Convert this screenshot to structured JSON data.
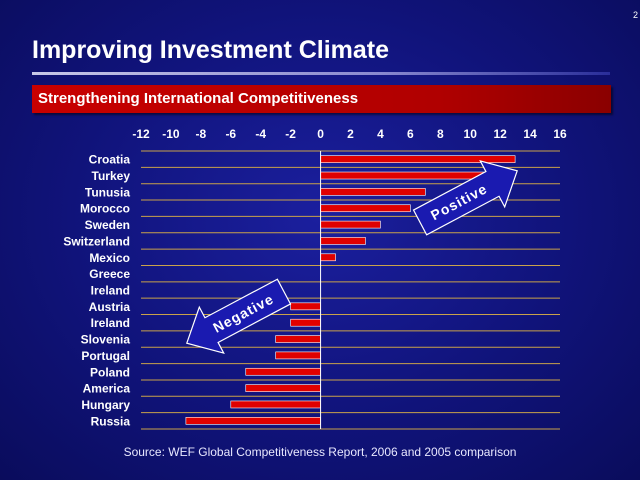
{
  "page": {
    "number": "2"
  },
  "header": {
    "title": "Improving Investment Climate",
    "banner": "Strengthening International Competitiveness"
  },
  "footer": {
    "source": "Source: WEF Global Competitiveness Report, 2006 and 2005 comparison"
  },
  "colors": {
    "bar": "#e00000",
    "background": "#12157f",
    "banner": "#c00000",
    "arrow": "#1a1ab0"
  },
  "chart_data": {
    "type": "bar",
    "orientation": "horizontal",
    "categories": [
      "Croatia",
      "Turkey",
      "Tunusia",
      "Morocco",
      "Sweden",
      "Switzerland",
      "Mexico",
      "Greece",
      "Ireland",
      "Austria",
      "Ireland",
      "Slovenia",
      "Portugal",
      "Poland",
      "America",
      "Hungary",
      "Russia"
    ],
    "values": [
      13,
      12,
      7,
      6,
      4,
      3,
      1,
      0,
      0,
      -2,
      -2,
      -3,
      -3,
      -5,
      -5,
      -6,
      -9
    ],
    "xlim": [
      -12,
      16
    ],
    "xticks": [
      -12,
      -10,
      -8,
      -6,
      -4,
      -2,
      0,
      2,
      4,
      6,
      8,
      10,
      12,
      14,
      16
    ],
    "axis_position": "top",
    "grid": "horizontal",
    "annotations": {
      "positive": "Positive",
      "negative": "Negative"
    }
  }
}
